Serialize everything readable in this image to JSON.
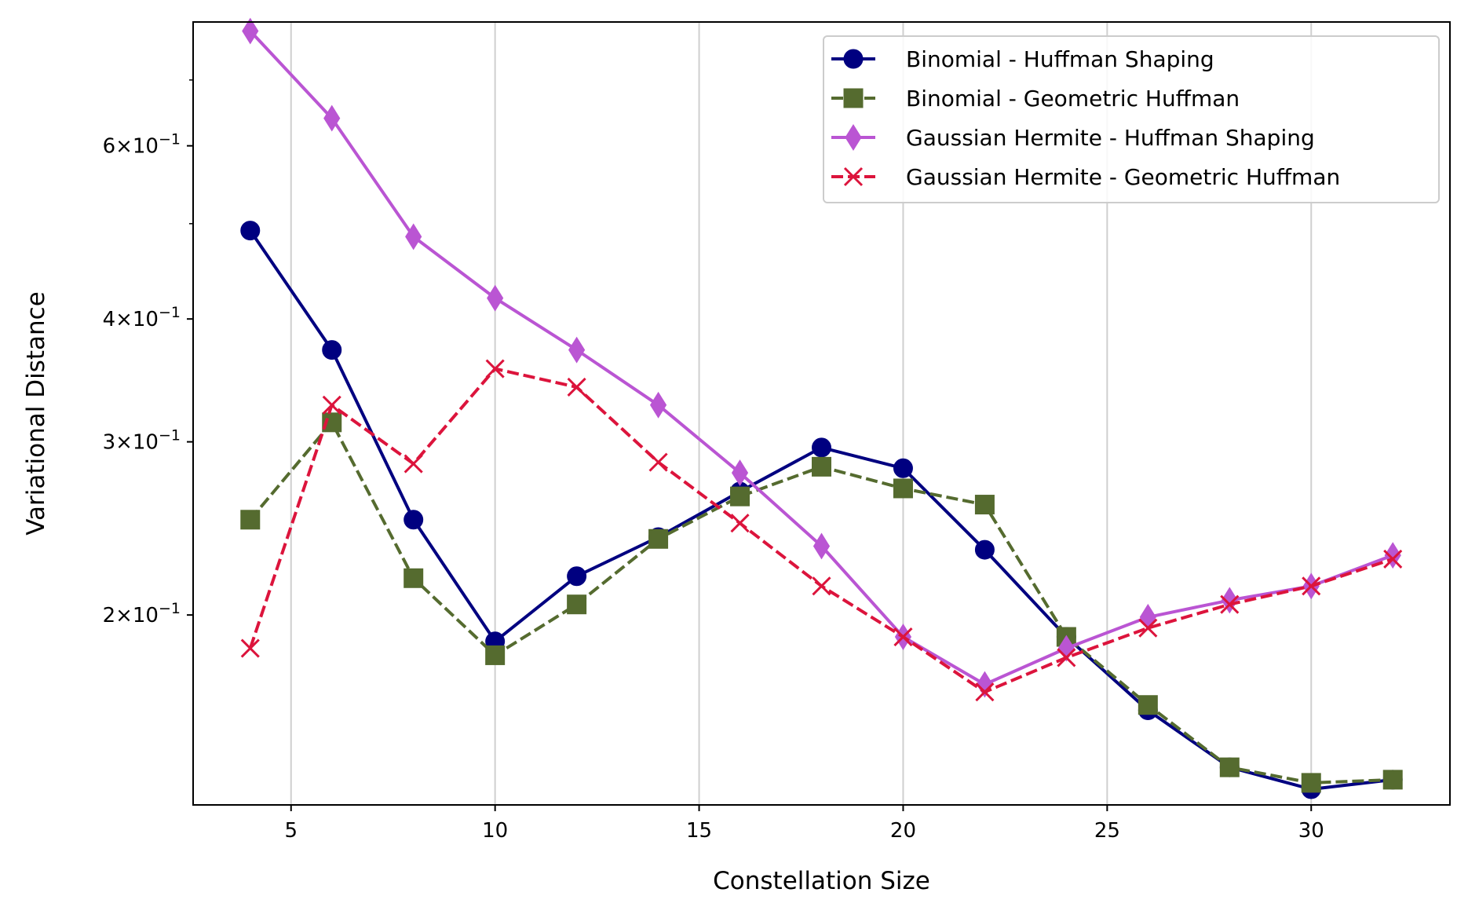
{
  "chart_data": {
    "type": "line",
    "xlabel": "Constellation Size",
    "ylabel": "Variational Distance",
    "x_scale": "linear",
    "y_scale": "log",
    "xlim": [
      2.6,
      33.4
    ],
    "ylim": [
      0.1282,
      0.8018
    ],
    "x_ticks": [
      5,
      10,
      15,
      20,
      25,
      30
    ],
    "x_tick_labels": [
      "5",
      "10",
      "15",
      "20",
      "25",
      "30"
    ],
    "y_ticks": [
      0.2,
      0.3,
      0.4,
      0.6
    ],
    "y_tick_labels": [
      {
        "mant": "2",
        "exp": "−1"
      },
      {
        "mant": "3",
        "exp": "−1"
      },
      {
        "mant": "4",
        "exp": "−1"
      },
      {
        "mant": "6",
        "exp": "−1"
      }
    ],
    "y_minor_ticks": [
      0.5,
      0.7
    ],
    "grid": "x-major",
    "legend_position": "top-right",
    "x": [
      4,
      6,
      8,
      10,
      12,
      14,
      16,
      18,
      20,
      22,
      24,
      26,
      28,
      30,
      32
    ],
    "series": [
      {
        "name": "Binomial - Huffman Shaping",
        "color": "#000080",
        "dash": "solid",
        "marker": "circle",
        "values": [
          0.492,
          0.372,
          0.25,
          0.188,
          0.219,
          0.24,
          0.267,
          0.296,
          0.282,
          0.233,
          0.19,
          0.16,
          0.14,
          0.133,
          0.136
        ]
      },
      {
        "name": "Binomial - Geometric Huffman",
        "color": "#556b2f",
        "dash": "dashed",
        "marker": "square",
        "values": [
          0.25,
          0.314,
          0.218,
          0.182,
          0.205,
          0.239,
          0.264,
          0.283,
          0.269,
          0.259,
          0.19,
          0.162,
          0.14,
          0.135,
          0.136
        ]
      },
      {
        "name": "Gaussian Hermite - Huffman Shaping",
        "color": "#ba55d3",
        "dash": "solid",
        "marker": "thin_diamond",
        "values": [
          0.785,
          0.64,
          0.485,
          0.42,
          0.372,
          0.327,
          0.279,
          0.235,
          0.19,
          0.17,
          0.185,
          0.199,
          0.207,
          0.214,
          0.23
        ]
      },
      {
        "name": "Gaussian Hermite - Geometric Huffman",
        "color": "#dc143c",
        "dash": "dashed",
        "marker": "x",
        "values": [
          0.185,
          0.327,
          0.285,
          0.356,
          0.341,
          0.286,
          0.248,
          0.214,
          0.19,
          0.167,
          0.181,
          0.194,
          0.205,
          0.214,
          0.228
        ]
      }
    ]
  }
}
